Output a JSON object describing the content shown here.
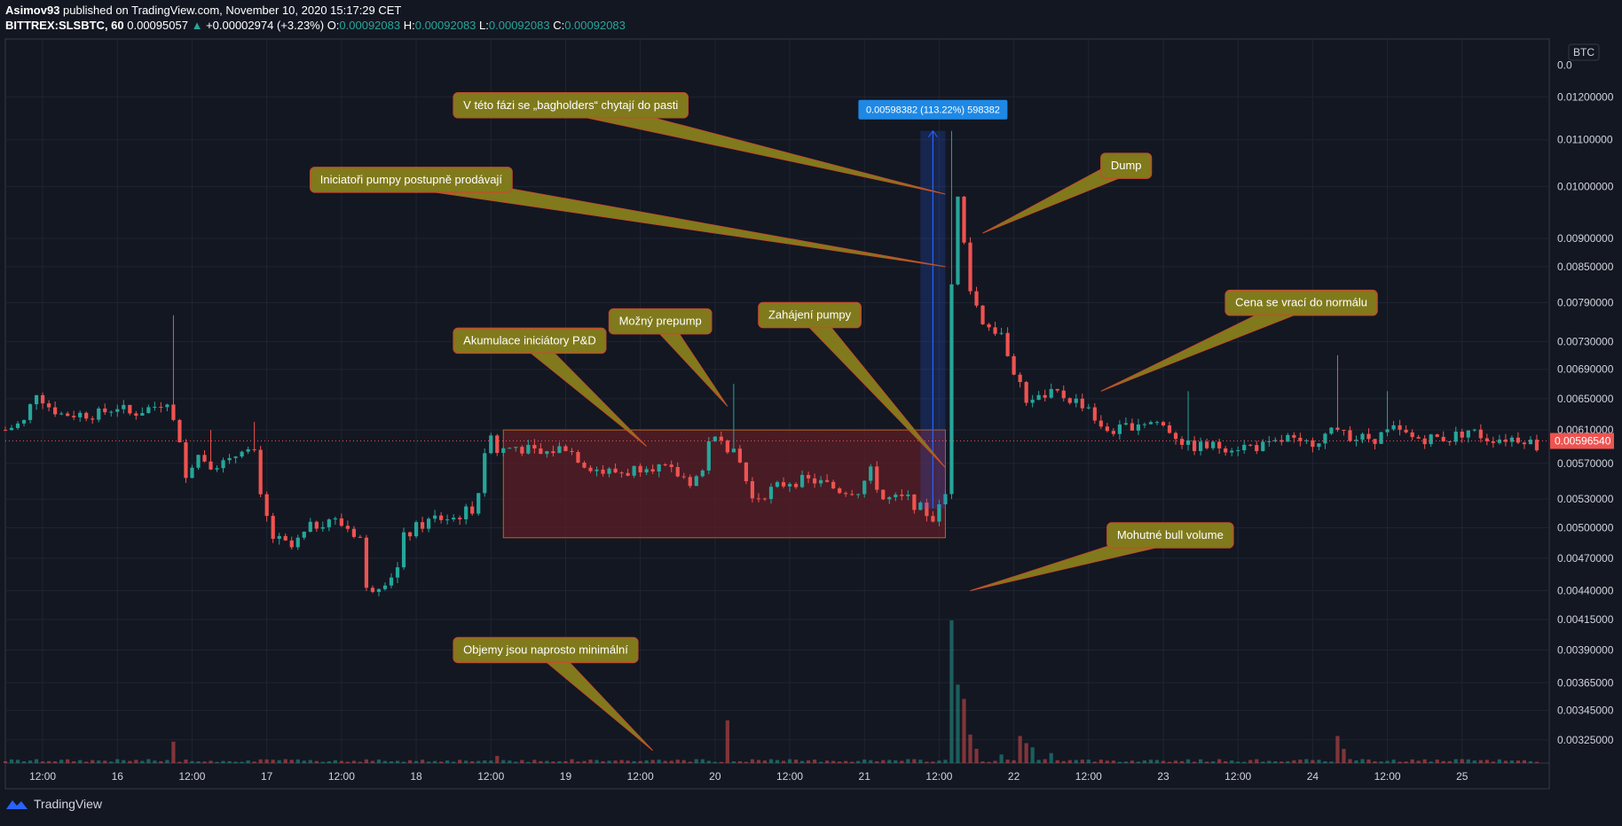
{
  "header": {
    "author": "Asimov93",
    "published": "published on TradingView.com, November 10, 2020 15:17:29 CET",
    "symbol": "BITTREX:SLSBTC, 60",
    "last": "0.00095057",
    "arrow": "▲",
    "change": "+0.00002974 (+3.23%)",
    "o_label": "O:",
    "o_value": "0.00092083",
    "h_label": "H:",
    "h_value": "0.00092083",
    "l_label": "L:",
    "l_value": "0.00092083",
    "c_label": "C:",
    "c_value": "0.00092083"
  },
  "footer": {
    "brand": "TradingView",
    "brand_icon": "tradingview-logo-icon"
  },
  "colors": {
    "bg": "#131722",
    "up": "#26a69a",
    "down": "#ef5350",
    "grid": "#1f2433",
    "axis_text": "#d1d4dc",
    "annotation_bg": "#807a1c",
    "annotation_border": "#c0502a",
    "range_box": "#5c1d26",
    "measure": "#2962ff"
  },
  "chart_data": {
    "type": "candlestick",
    "currency_label": "BTC",
    "current_price_label": "0.00596540",
    "y_scale": "log",
    "ylim": [
      0.0031,
      0.0135
    ],
    "y_ticks": [
      "0.01200000",
      "0.01100000",
      "0.01000000",
      "0.00900000",
      "0.00850000",
      "0.00790000",
      "0.00730000",
      "0.00690000",
      "0.00650000",
      "0.00610000",
      "0.00570000",
      "0.00530000",
      "0.00500000",
      "0.00470000",
      "0.00440000",
      "0.00415000",
      "0.00390000",
      "0.00365000",
      "0.00345000",
      "0.00325000"
    ],
    "y_tick_partial": "0.0",
    "x_range": [
      0,
      248
    ],
    "x_ticks": [
      {
        "x": 6,
        "label": "12:00"
      },
      {
        "x": 18,
        "label": "16"
      },
      {
        "x": 30,
        "label": "12:00"
      },
      {
        "x": 42,
        "label": "17"
      },
      {
        "x": 54,
        "label": "12:00"
      },
      {
        "x": 66,
        "label": "18"
      },
      {
        "x": 78,
        "label": "12:00"
      },
      {
        "x": 90,
        "label": "19"
      },
      {
        "x": 102,
        "label": "12:00"
      },
      {
        "x": 114,
        "label": "20"
      },
      {
        "x": 126,
        "label": "12:00"
      },
      {
        "x": 138,
        "label": "21"
      },
      {
        "x": 150,
        "label": "12:00"
      },
      {
        "x": 162,
        "label": "22"
      },
      {
        "x": 174,
        "label": "12:00"
      },
      {
        "x": 186,
        "label": "23"
      },
      {
        "x": 198,
        "label": "12:00"
      },
      {
        "x": 210,
        "label": "24"
      },
      {
        "x": 222,
        "label": "12:00"
      },
      {
        "x": 234,
        "label": "25"
      }
    ],
    "anchors": [
      [
        0,
        0.0061
      ],
      [
        3,
        0.0062
      ],
      [
        5,
        0.0066
      ],
      [
        7,
        0.0064
      ],
      [
        9,
        0.0063
      ],
      [
        12,
        0.0063
      ],
      [
        15,
        0.0063
      ],
      [
        18,
        0.0064
      ],
      [
        20,
        0.0063
      ],
      [
        24,
        0.0064
      ],
      [
        26,
        0.0065
      ],
      [
        27,
        0.0062
      ],
      [
        29,
        0.0056
      ],
      [
        31,
        0.0058
      ],
      [
        33,
        0.0057
      ],
      [
        36,
        0.0057
      ],
      [
        38,
        0.0059
      ],
      [
        40,
        0.0058
      ],
      [
        41,
        0.0053
      ],
      [
        43,
        0.0049
      ],
      [
        46,
        0.0048
      ],
      [
        49,
        0.005
      ],
      [
        52,
        0.0051
      ],
      [
        55,
        0.005
      ],
      [
        57,
        0.0049
      ],
      [
        58,
        0.0044
      ],
      [
        61,
        0.0045
      ],
      [
        63,
        0.0046
      ],
      [
        64,
        0.0049
      ],
      [
        66,
        0.005
      ],
      [
        69,
        0.0051
      ],
      [
        72,
        0.0051
      ],
      [
        75,
        0.0052
      ],
      [
        76,
        0.0054
      ],
      [
        78,
        0.0061
      ],
      [
        79,
        0.00585
      ],
      [
        82,
        0.0059
      ],
      [
        86,
        0.0058
      ],
      [
        90,
        0.0059
      ],
      [
        93,
        0.0057
      ],
      [
        96,
        0.0056
      ],
      [
        100,
        0.0056
      ],
      [
        103,
        0.0057
      ],
      [
        107,
        0.0056
      ],
      [
        110,
        0.0055
      ],
      [
        112,
        0.0056
      ],
      [
        113,
        0.006
      ],
      [
        116,
        0.0059
      ],
      [
        118,
        0.0057
      ],
      [
        120,
        0.0053
      ],
      [
        123,
        0.0054
      ],
      [
        126,
        0.0055
      ],
      [
        130,
        0.0055
      ],
      [
        134,
        0.0054
      ],
      [
        137,
        0.0054
      ],
      [
        139,
        0.0056
      ],
      [
        141,
        0.0053
      ],
      [
        145,
        0.0053
      ],
      [
        147,
        0.0052
      ],
      [
        149,
        0.0051
      ],
      [
        150,
        0.0052
      ],
      [
        151,
        0.00535
      ],
      [
        152,
        0.0082
      ],
      [
        153,
        0.0098
      ],
      [
        154,
        0.0089
      ],
      [
        155,
        0.0081
      ],
      [
        157,
        0.0076
      ],
      [
        160,
        0.0074
      ],
      [
        162,
        0.0069
      ],
      [
        164,
        0.0065
      ],
      [
        166,
        0.0065
      ],
      [
        168,
        0.0066
      ],
      [
        171,
        0.0065
      ],
      [
        174,
        0.0064
      ],
      [
        176,
        0.0061
      ],
      [
        179,
        0.0061
      ],
      [
        182,
        0.0062
      ],
      [
        185,
        0.0062
      ],
      [
        187,
        0.0061
      ],
      [
        190,
        0.0059
      ],
      [
        193,
        0.0059
      ],
      [
        196,
        0.0059
      ],
      [
        200,
        0.0059
      ],
      [
        203,
        0.0059
      ],
      [
        206,
        0.006
      ],
      [
        208,
        0.0059
      ],
      [
        211,
        0.006
      ],
      [
        214,
        0.0061
      ],
      [
        217,
        0.006
      ],
      [
        220,
        0.006
      ],
      [
        223,
        0.0061
      ],
      [
        226,
        0.006
      ],
      [
        229,
        0.006
      ],
      [
        232,
        0.006
      ],
      [
        235,
        0.0061
      ],
      [
        238,
        0.006
      ],
      [
        241,
        0.006
      ],
      [
        244,
        0.006
      ],
      [
        246,
        0.0059
      ]
    ],
    "spikes": [
      {
        "x": 27,
        "high": 0.0077
      },
      {
        "x": 117,
        "high": 0.0067
      },
      {
        "x": 152,
        "high": 0.0112
      },
      {
        "x": 214,
        "high": 0.0071
      },
      {
        "x": 222,
        "high": 0.0066
      },
      {
        "x": 190,
        "high": 0.0066
      },
      {
        "x": 33,
        "high": 0.0061
      },
      {
        "x": 40,
        "high": 0.0062
      }
    ],
    "volume_spikes": [
      {
        "x": 27,
        "v": 0.15
      },
      {
        "x": 79,
        "v": 0.05
      },
      {
        "x": 116,
        "v": 0.3
      },
      {
        "x": 152,
        "v": 1.0
      },
      {
        "x": 153,
        "v": 0.55
      },
      {
        "x": 154,
        "v": 0.45
      },
      {
        "x": 155,
        "v": 0.2
      },
      {
        "x": 156,
        "v": 0.1
      },
      {
        "x": 163,
        "v": 0.19
      },
      {
        "x": 164,
        "v": 0.14
      },
      {
        "x": 165,
        "v": 0.11
      },
      {
        "x": 214,
        "v": 0.19
      },
      {
        "x": 215,
        "v": 0.1
      },
      {
        "x": 160,
        "v": 0.06
      },
      {
        "x": 168,
        "v": 0.07
      }
    ],
    "range_box": {
      "x0": 80,
      "x1": 151,
      "y_top": 0.0061,
      "y_bottom": 0.0049
    },
    "measure": {
      "x0": 147,
      "x1": 151,
      "y_top": 0.0112,
      "y_bottom": 0.0052,
      "label": "0.00598382 (113.22%) 598382"
    },
    "annotations": [
      {
        "text": "V této fázi se „bagholders“ chytají do pasti",
        "bx": 72,
        "by": 0.0121,
        "tx": 151,
        "ty": 0.00985
      },
      {
        "text": "Iniciatoři pumpy postupně prodávají",
        "bx": 49,
        "by": 0.0104,
        "tx": 151,
        "ty": 0.0085
      },
      {
        "text": "Dump",
        "bx": 176,
        "by": 0.0107,
        "tx": 157,
        "ty": 0.0091
      },
      {
        "text": "Cena se vrací do normálu",
        "bx": 196,
        "by": 0.0081,
        "tx": 176,
        "ty": 0.0066
      },
      {
        "text": "Zahájení pumpy",
        "bx": 121,
        "by": 0.0079,
        "tx": 151,
        "ty": 0.00565
      },
      {
        "text": "Možný prepump",
        "bx": 97,
        "by": 0.0078,
        "tx": 116,
        "ty": 0.0064
      },
      {
        "text": "Akumulace iniciátory P&D",
        "bx": 72,
        "by": 0.0075,
        "tx": 103,
        "ty": 0.0059
      },
      {
        "text": "Mohutné bull volume",
        "bx": 177,
        "by": 0.00505,
        "tx": 155,
        "ty": 0.0044
      },
      {
        "text": "Objemy jsou naprosto minimální",
        "bx": 72,
        "by": 0.004,
        "tx": 104,
        "ty": 0.00318
      }
    ]
  }
}
